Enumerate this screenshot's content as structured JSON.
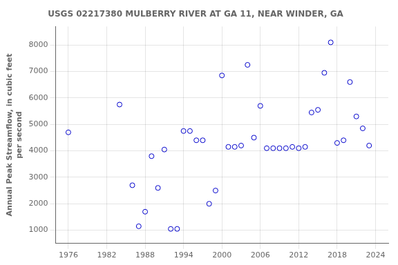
{
  "chart_data": {
    "type": "scatter",
    "title": "USGS 02217380 MULBERRY RIVER AT GA 11, NEAR WINDER, GA",
    "ylabel": "Annual Peak Streamflow, in cubic feet\nper second",
    "x": [
      1976,
      1984,
      1986,
      1987,
      1988,
      1989,
      1990,
      1991,
      1992,
      1993,
      1994,
      1995,
      1996,
      1997,
      1998,
      1999,
      2000,
      2001,
      2002,
      2003,
      2004,
      2005,
      2006,
      2007,
      2008,
      2009,
      2010,
      2011,
      2012,
      2013,
      2014,
      2015,
      2016,
      2017,
      2018,
      2019,
      2020,
      2021,
      2022,
      2023
    ],
    "values": [
      4700,
      5750,
      2700,
      1150,
      1700,
      3800,
      2600,
      4050,
      1050,
      1050,
      4750,
      4750,
      4400,
      4400,
      2000,
      2500,
      6850,
      4150,
      4150,
      4200,
      7250,
      4500,
      5700,
      4100,
      4100,
      4100,
      4100,
      4150,
      4100,
      4150,
      5450,
      5550,
      6950,
      8100,
      4300,
      4400,
      6600,
      5300,
      4850,
      4200
    ],
    "color": "#0000cc",
    "marker": "circle",
    "xlim": [
      1974,
      2026
    ],
    "ylim": [
      500,
      8700
    ],
    "xticks": [
      1976,
      1982,
      1988,
      1994,
      2000,
      2006,
      2012,
      2018,
      2024
    ],
    "yticks": [
      1000,
      2000,
      3000,
      4000,
      5000,
      6000,
      7000,
      8000
    ],
    "grid": true
  }
}
